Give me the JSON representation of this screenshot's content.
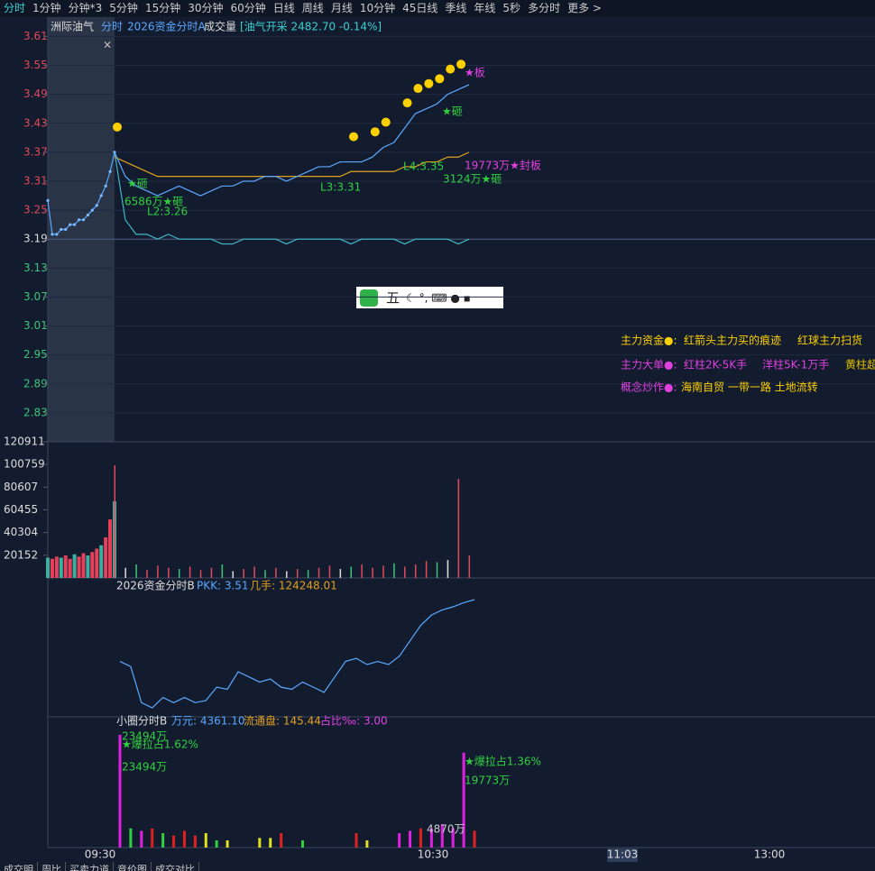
{
  "toolbar": [
    "分时",
    "1分钟",
    "分钟*3",
    "5分钟",
    "15分钟",
    "30分钟",
    "60分钟",
    "日线",
    "周线",
    "月线",
    "10分钟",
    "45日线",
    "季线",
    "年线",
    "5秒",
    "多分时",
    "更多 >"
  ],
  "header": {
    "stock": "洲际油气",
    "tab": "分时",
    "indicator": "2026资金分时A",
    "volume": "成交量",
    "sector": "[油气开采 2482.70 -0.14%]",
    "close": "×"
  },
  "price_panel": {
    "ylim": [
      2.77,
      3.65
    ],
    "yticks": [
      3.61,
      3.55,
      3.49,
      3.43,
      3.37,
      3.31,
      3.25,
      3.19,
      3.13,
      3.07,
      3.01,
      2.95,
      2.89,
      2.83
    ],
    "base": 3.19,
    "premarket": [
      3.27,
      3.2,
      3.2,
      3.21,
      3.21,
      3.22,
      3.22,
      3.23,
      3.23,
      3.24,
      3.25,
      3.26,
      3.28,
      3.3,
      3.33,
      3.37
    ],
    "price": [
      3.37,
      3.32,
      3.3,
      3.29,
      3.28,
      3.29,
      3.3,
      3.29,
      3.28,
      3.29,
      3.3,
      3.3,
      3.31,
      3.31,
      3.32,
      3.32,
      3.31,
      3.32,
      3.33,
      3.34,
      3.34,
      3.35,
      3.35,
      3.35,
      3.36,
      3.38,
      3.39,
      3.42,
      3.45,
      3.46,
      3.47,
      3.49,
      3.5,
      3.51
    ],
    "average": [
      3.36,
      3.35,
      3.34,
      3.33,
      3.32,
      3.32,
      3.32,
      3.32,
      3.32,
      3.32,
      3.32,
      3.32,
      3.32,
      3.32,
      3.32,
      3.32,
      3.32,
      3.32,
      3.32,
      3.32,
      3.32,
      3.32,
      3.33,
      3.33,
      3.33,
      3.33,
      3.33,
      3.34,
      3.34,
      3.35,
      3.35,
      3.36,
      3.36,
      3.37
    ],
    "flow": [
      3.37,
      3.23,
      3.2,
      3.2,
      3.19,
      3.2,
      3.19,
      3.19,
      3.19,
      3.19,
      3.18,
      3.18,
      3.19,
      3.19,
      3.19,
      3.19,
      3.18,
      3.19,
      3.19,
      3.19,
      3.19,
      3.19,
      3.18,
      3.19,
      3.19,
      3.19,
      3.19,
      3.18,
      3.19,
      3.19,
      3.19,
      3.19,
      3.18,
      3.19
    ],
    "annotations": [
      "★板",
      "★砸",
      "6586万★砸",
      "L2:3.26",
      "L3:3.31",
      "L4:3.35",
      "★砸",
      "19773万★封板",
      "3124万★砸"
    ]
  },
  "ime": "五",
  "legend": [
    [
      "主力资金●:",
      "红箭头主力买的痕迹",
      "红球主力扫货"
    ],
    [
      "主力大单●:",
      "红柱2K-5K手",
      "洋柱5K-1万手",
      "黄柱超"
    ],
    [
      "概念炒作●:",
      "海南自贸 一带一路 土地流转"
    ]
  ],
  "volume_panel": {
    "ylim": [
      0,
      120911
    ],
    "yticks": [
      120911,
      100759,
      80607,
      60455,
      40304,
      20152
    ],
    "premarket": [
      18000,
      17000,
      19000,
      18000,
      20000,
      17000,
      21000,
      19000,
      22000,
      20000,
      23000,
      26000,
      29000,
      36000,
      52000,
      68000
    ],
    "values": [
      100000,
      9000,
      12000,
      7000,
      11000,
      9000,
      8000,
      10000,
      7000,
      9000,
      12000,
      6000,
      8000,
      10000,
      7000,
      9000,
      6000,
      8000,
      7000,
      9000,
      11000,
      8000,
      10000,
      12000,
      9000,
      11000,
      13000,
      10000,
      12000,
      15000,
      14000,
      16000,
      88000,
      20000
    ]
  },
  "panel2": {
    "label": "2026资金分时B",
    "pkk": "PKK: 3.51",
    "shares": "几手: 124248.01",
    "values": [
      0.55,
      0.5,
      0.15,
      0.1,
      0.2,
      0.15,
      0.2,
      0.15,
      0.17,
      0.3,
      0.28,
      0.45,
      0.4,
      0.35,
      0.38,
      0.3,
      0.28,
      0.35,
      0.3,
      0.25,
      0.4,
      0.55,
      0.58,
      0.52,
      0.55,
      0.52,
      0.6,
      0.75,
      0.9,
      1.0,
      1.05,
      1.08,
      1.12,
      1.15
    ]
  },
  "panel3": {
    "label": "小圈分时B",
    "wan": "万元: 4361.10",
    "float": "流通盘: 145.44",
    "ratio": "占比‰: 3.00",
    "ylim": [
      0,
      23494
    ],
    "values": [
      23494,
      4000,
      3500,
      4000,
      3000,
      2500,
      3500,
      2500,
      3000,
      1500,
      1500,
      0,
      0,
      2000,
      2000,
      3000,
      0,
      1500,
      0,
      0,
      0,
      0,
      3000,
      1500,
      0,
      0,
      3000,
      3500,
      4000,
      4000,
      4870,
      4000,
      19773,
      3500
    ],
    "colors": [
      "#e020e0",
      "#30d040",
      "#e020e0",
      "#e02020",
      "#30d040",
      "#e02020",
      "#e02020",
      "#e02020",
      "#e0e020",
      "#30d040",
      "#e0e020",
      "#e02020",
      "#e02020",
      "#e0e020",
      "#e0e020",
      "#e02020",
      "#e02020",
      "#30d040",
      "#e02020",
      "#e02020",
      "#e02020",
      "#e02020",
      "#e02020",
      "#e0e020",
      "#e02020",
      "#e02020",
      "#e020e0",
      "#e020e0",
      "#e02020",
      "#e020e0",
      "#e020e0",
      "#e020e0",
      "#e020e0",
      "#e02020"
    ],
    "annotations": [
      "23494万",
      "★爆拉占1.62%",
      "23494万",
      "★爆拉占1.36%",
      "19773万",
      "4870万"
    ]
  },
  "time_axis": [
    "09:30",
    "10:30",
    "11:03",
    "13:00"
  ],
  "bottom_tabs": [
    "成交明",
    "周比",
    "买卖力道",
    "竞价图",
    "成交对比"
  ]
}
